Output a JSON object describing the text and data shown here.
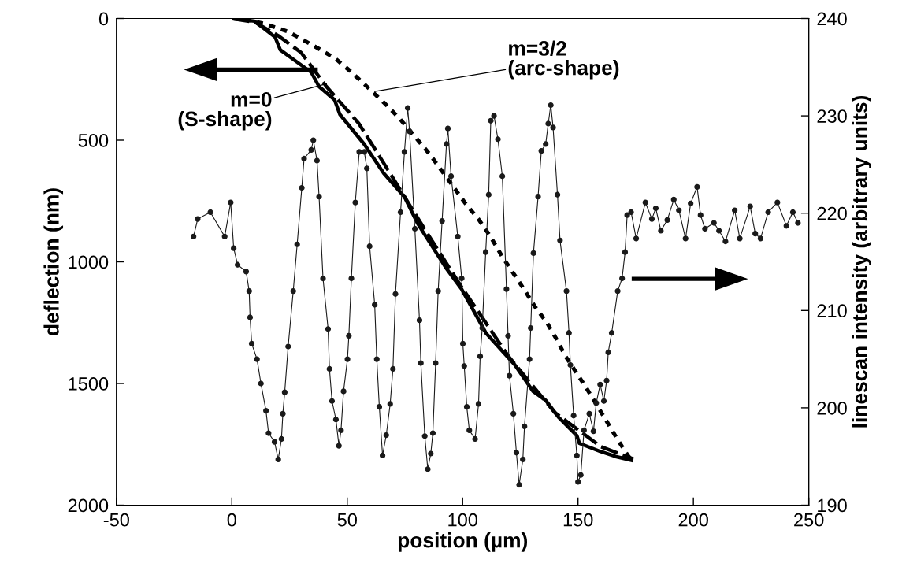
{
  "chart_data": {
    "type": "line",
    "xlabel": "position (µm)",
    "ylabel": "deflection (nm)",
    "y2label": "linescan intensity (arbitrary units)",
    "xlim": [
      -50,
      250
    ],
    "xticks": [
      -50,
      0,
      50,
      100,
      150,
      200,
      250
    ],
    "ylim": [
      2000,
      0
    ],
    "yticks": [
      0,
      500,
      1000,
      1500,
      2000
    ],
    "y2lim": [
      190,
      240
    ],
    "y2ticks": [
      190,
      200,
      210,
      220,
      230,
      240
    ],
    "series": [
      {
        "color": "#000000",
        "line_style": "solid",
        "marker": "none",
        "x": [
          0,
          9.8,
          18.7,
          21,
          28.8,
          34.4,
          37.8,
          44.5,
          46.8,
          57.4,
          65.8,
          74.8,
          80.4,
          92.7,
          99.5,
          110.2,
          122.6,
          130.4,
          136,
          141.6,
          149.5,
          150.6,
          159.6,
          166.3,
          173.9
        ],
        "values": [
          0,
          11,
          76,
          129,
          183,
          221,
          280,
          334,
          394,
          517,
          636,
          733,
          841,
          1024,
          1111,
          1294,
          1423,
          1531,
          1569,
          1639,
          1714,
          1746,
          1779,
          1800,
          1817
        ]
      },
      {
        "color": "#000000",
        "line_style": "dashed",
        "marker": "none",
        "x": [
          0,
          10,
          20,
          30,
          41,
          55,
          65,
          84,
          100,
          120,
          140,
          160,
          174
        ],
        "values": [
          0,
          15,
          70,
          140,
          280,
          431,
          582,
          873,
          1110,
          1390,
          1620,
          1760,
          1810
        ]
      },
      {
        "color": "#000000",
        "line_style": "dotted",
        "marker": "none",
        "x": [
          0,
          5,
          14.3,
          24.4,
          36.7,
          44.5,
          51.3,
          58,
          65.8,
          72.6,
          79.3,
          86,
          101.2,
          106.9,
          112,
          117,
          121.5,
          126.5,
          131.5,
          136.6,
          140.5,
          144.4,
          148.9,
          153.4,
          162.4,
          166.8,
          171.9,
          173.9
        ],
        "values": [
          0,
          3,
          22,
          54,
          119,
          162,
          216,
          275,
          345,
          410,
          485,
          561,
          760,
          825,
          895,
          976,
          1040,
          1111,
          1186,
          1251,
          1315,
          1385,
          1450,
          1515,
          1655,
          1725,
          1800,
          1817
        ]
      },
      {
        "color": "#1a1a1a",
        "line_style": "solid",
        "marker": "circle",
        "axis": "y2",
        "x": [
          -16.6,
          -14.8,
          -9.3,
          -3.1,
          -0.5,
          0.8,
          2.5,
          6.2,
          7.5,
          7.9,
          8.6,
          10.9,
          12.6,
          14.8,
          15.9,
          18.5,
          20.1,
          21.5,
          22.1,
          22.9,
          24.4,
          26.6,
          28.3,
          30.3,
          31.3,
          34.4,
          35.3,
          36.9,
          37.8,
          39.5,
          41.7,
          42.3,
          43.4,
          45.1,
          46.4,
          47.3,
          48.4,
          50.1,
          50.7,
          51.8,
          53.5,
          55.2,
          57.4,
          58.5,
          59.7,
          61.9,
          62.8,
          63.9,
          65.3,
          66.9,
          68.6,
          69.8,
          70.9,
          73.1,
          74.8,
          76.2,
          77,
          79.3,
          81.3,
          81.9,
          83.6,
          84.9,
          86.2,
          87.1,
          88.3,
          89.4,
          91.1,
          93,
          93.6,
          95,
          97.9,
          99.6,
          100.1,
          100.7,
          101.8,
          102.9,
          105.4,
          106.9,
          107.6,
          108.5,
          110,
          111.3,
          112.2,
          113.6,
          115.3,
          117.2,
          119,
          119.7,
          120.3,
          122,
          123.3,
          124.5,
          126.1,
          126.8,
          129,
          129.5,
          130.7,
          132.7,
          134.1,
          136,
          137.1,
          138.2,
          139.2,
          141.1,
          142.2,
          145,
          146.1,
          146.7,
          148.1,
          149.5,
          150,
          151.2,
          152.6,
          154.9,
          156.7,
          157.9,
          159.6,
          161.2,
          162.4,
          163.1,
          164.6,
          167.2,
          169.1,
          170.4,
          171.3,
          173,
          175.2,
          179.2,
          182,
          183.7,
          185.9,
          188.7,
          191.5,
          193.7,
          196.6,
          198.8,
          201.6,
          203.1,
          205,
          208.9,
          211.1,
          213.9,
          217.9,
          220.1,
          224.6,
          226.8,
          229.1,
          232.4,
          236.4,
          240.3,
          243.1,
          245.3
        ],
        "values": [
          217.6,
          219.4,
          220.1,
          217.6,
          221.1,
          216.4,
          214.7,
          214,
          212,
          209.3,
          206.6,
          205,
          202.5,
          199.7,
          197.4,
          196.5,
          194.7,
          196.8,
          199.4,
          201.6,
          206.3,
          212,
          216.8,
          222.6,
          225.6,
          226.5,
          227.5,
          225.4,
          221.7,
          213.3,
          208.1,
          204,
          200.7,
          198.8,
          196.1,
          197.7,
          201.7,
          205,
          207.4,
          213.3,
          221.1,
          226.3,
          226.3,
          224.6,
          216.6,
          210.6,
          205,
          200.1,
          195.1,
          197.2,
          200.4,
          204,
          211.7,
          220.1,
          226.3,
          230.8,
          228.4,
          218.4,
          209,
          204.6,
          197.1,
          193.7,
          195.3,
          197.4,
          204.6,
          212,
          219.2,
          227.1,
          228.7,
          223.8,
          217.6,
          213.3,
          206.6,
          204.3,
          200.1,
          197.7,
          196.8,
          200.4,
          205.3,
          208.2,
          216,
          221.9,
          229.5,
          230,
          227.6,
          223.8,
          212.2,
          207.4,
          203.3,
          199.4,
          195.4,
          192.1,
          194.7,
          198.1,
          205,
          208.2,
          215.9,
          221.7,
          226.4,
          227.1,
          229.2,
          231.1,
          228.8,
          221.9,
          217.2,
          212,
          207.7,
          204.4,
          199.2,
          195.1,
          192.4,
          193.1,
          197.7,
          199.4,
          197.6,
          200.5,
          202.4,
          200.7,
          202.8,
          205.7,
          207.7,
          212,
          213.3,
          216,
          219.8,
          220.1,
          217.4,
          221.1,
          219.4,
          220.5,
          218.2,
          219.3,
          221.4,
          220.3,
          217.4,
          221,
          222.7,
          219.8,
          218.4,
          219,
          218.2,
          217.1,
          220.3,
          217.4,
          220.7,
          217.9,
          217.4,
          220.1,
          221.1,
          218.7,
          220.1,
          219
        ]
      }
    ],
    "annotations": [
      {
        "text": "m=0\n(S-shape)",
        "x": 41,
        "y": 268
      },
      {
        "text": "m=3/2\n(arc-shape)",
        "x": 61.9,
        "y": 300
      }
    ]
  }
}
